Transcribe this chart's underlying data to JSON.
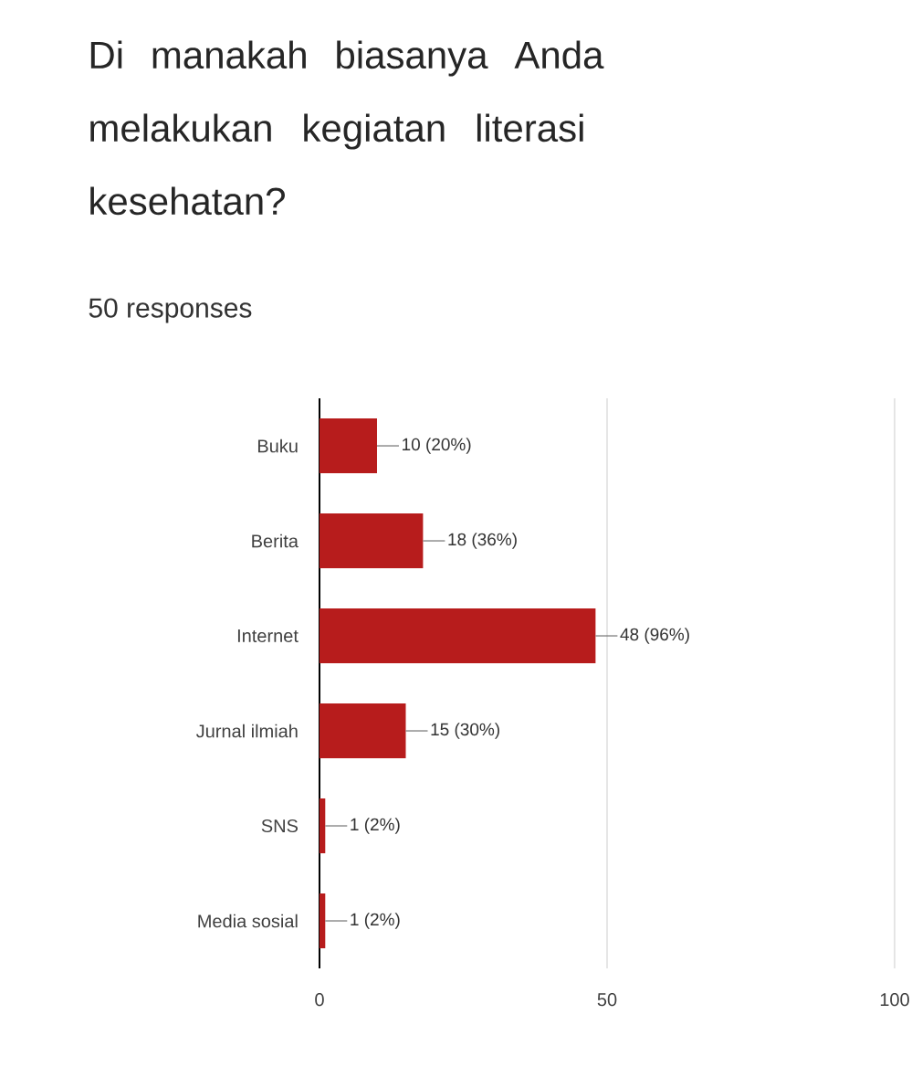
{
  "chart_data": {
    "type": "bar",
    "orientation": "horizontal",
    "title": "Di manakah biasanya Anda melakukan kegiatan literasi kesehatan?",
    "subtitle": "50 responses",
    "categories": [
      "Buku",
      "Berita",
      "Internet",
      "Jurnal ilmiah",
      "SNS",
      "Media sosial"
    ],
    "values": [
      10,
      18,
      48,
      15,
      1,
      1
    ],
    "value_labels": [
      "10 (20%)",
      "18 (36%)",
      "48 (96%)",
      "15 (30%)",
      "1 (2%)",
      "1 (2%)"
    ],
    "color": "#b71c1c",
    "xlim": [
      0,
      100
    ],
    "xticks": [
      0,
      50,
      100
    ],
    "grid": "x"
  }
}
